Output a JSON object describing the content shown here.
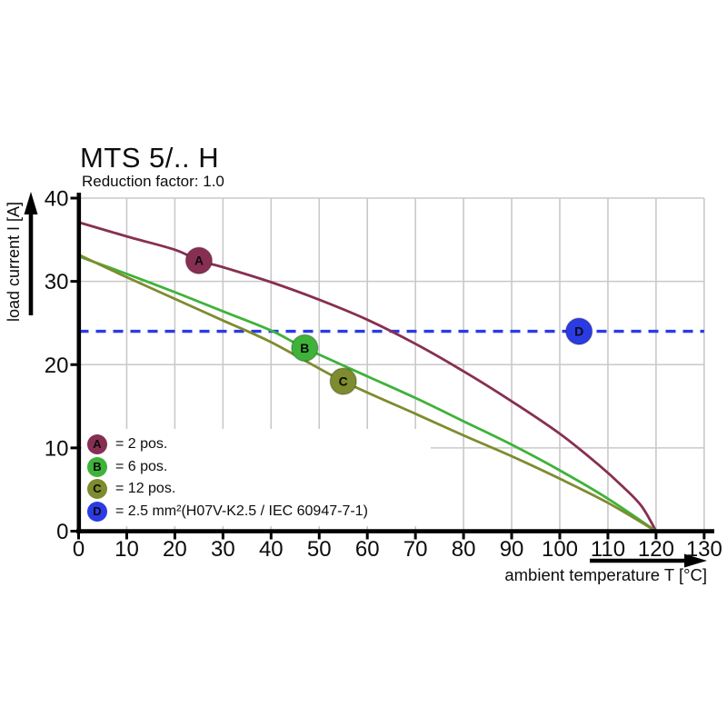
{
  "header": {
    "title": "MTS 5/.. H",
    "subtitle": "Reduction factor: 1.0"
  },
  "axes": {
    "x": {
      "label": "ambient temperature T [°C]",
      "min": 0,
      "max": 130,
      "step": 10
    },
    "y": {
      "label": "load current I [A]",
      "min": 0,
      "max": 40,
      "step": 10
    }
  },
  "colors": {
    "series_a": "#872f52",
    "series_b": "#3fb23a",
    "series_c": "#7e8b2e",
    "series_d": "#2b3be4",
    "grid": "#c9c9c9",
    "axis": "#000000"
  },
  "chart_data": {
    "type": "line",
    "title": "MTS 5/.. H",
    "subtitle": "Reduction factor: 1.0",
    "xlabel": "ambient temperature T [°C]",
    "ylabel": "load current I [A]",
    "xlim": [
      0,
      130
    ],
    "ylim": [
      0,
      40
    ],
    "grid": true,
    "legend_position": "lower left",
    "series": [
      {
        "id": "A",
        "name": "2 pos.",
        "color": "#872f52",
        "style": "solid",
        "marker_at": [
          25,
          32.5
        ],
        "points": [
          [
            0,
            37.1
          ],
          [
            10,
            35.4
          ],
          [
            20,
            33.8
          ],
          [
            25,
            32.5
          ],
          [
            30,
            31.7
          ],
          [
            40,
            29.9
          ],
          [
            50,
            27.8
          ],
          [
            60,
            25.4
          ],
          [
            70,
            22.5
          ],
          [
            80,
            19.2
          ],
          [
            90,
            15.6
          ],
          [
            100,
            11.7
          ],
          [
            108,
            8.0
          ],
          [
            113,
            5.4
          ],
          [
            117,
            3.0
          ],
          [
            120,
            0
          ]
        ]
      },
      {
        "id": "B",
        "name": "6 pos.",
        "color": "#3fb23a",
        "style": "solid",
        "marker_at": [
          47,
          22
        ],
        "points": [
          [
            0,
            33.0
          ],
          [
            10,
            30.9
          ],
          [
            20,
            28.7
          ],
          [
            30,
            26.4
          ],
          [
            40,
            24.1
          ],
          [
            47,
            22.0
          ],
          [
            60,
            18.6
          ],
          [
            70,
            16.0
          ],
          [
            80,
            13.2
          ],
          [
            90,
            10.4
          ],
          [
            100,
            7.3
          ],
          [
            110,
            3.9
          ],
          [
            120,
            0
          ]
        ]
      },
      {
        "id": "C",
        "name": "12 pos.",
        "color": "#7e8b2e",
        "style": "solid",
        "marker_at": [
          55,
          18
        ],
        "points": [
          [
            0,
            33.2
          ],
          [
            10,
            30.5
          ],
          [
            20,
            27.9
          ],
          [
            30,
            25.3
          ],
          [
            40,
            22.7
          ],
          [
            55,
            18.0
          ],
          [
            70,
            14.1
          ],
          [
            80,
            11.5
          ],
          [
            90,
            9.0
          ],
          [
            100,
            6.3
          ],
          [
            110,
            3.4
          ],
          [
            120,
            0
          ]
        ]
      },
      {
        "id": "D",
        "name": "2.5 mm²(H07V-K2.5 / IEC 60947-7-1)",
        "color": "#2b3be4",
        "style": "dashed",
        "constant_y": 24,
        "marker_at": [
          104,
          24
        ]
      }
    ]
  },
  "legend": {
    "items": [
      {
        "letter": "A",
        "color": "#872f52",
        "text": "= 2 pos."
      },
      {
        "letter": "B",
        "color": "#3fb23a",
        "text": "= 6 pos."
      },
      {
        "letter": "C",
        "color": "#7e8b2e",
        "text": "= 12 pos."
      },
      {
        "letter": "D",
        "color": "#2b3be4",
        "text": "= 2.5 mm²(H07V-K2.5 / IEC 60947-7-1)"
      }
    ]
  }
}
